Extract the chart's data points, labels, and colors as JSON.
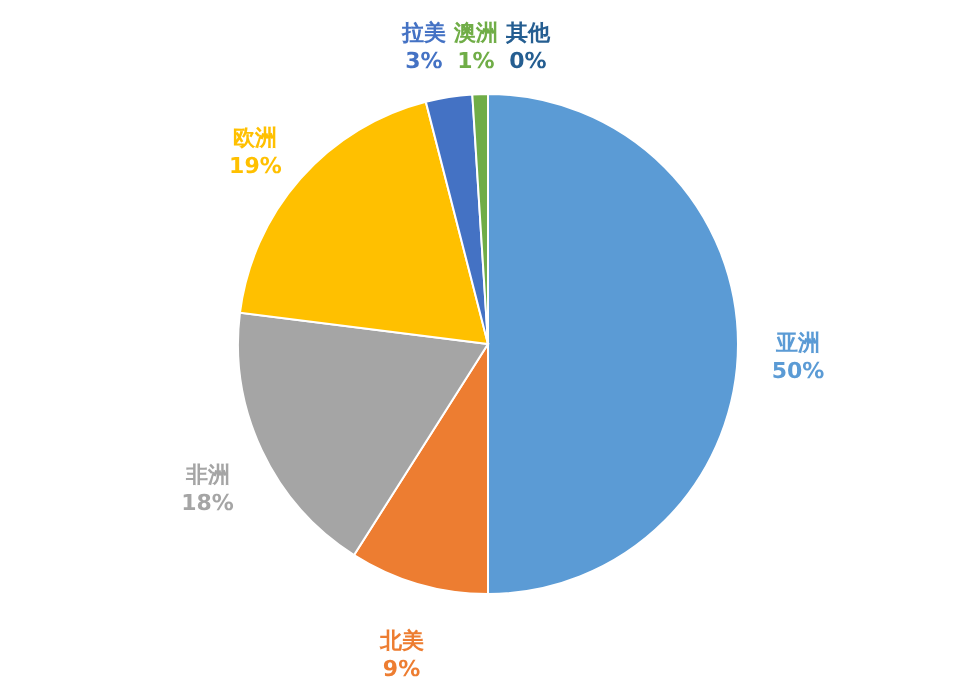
{
  "chart_data": {
    "type": "pie",
    "categories": [
      "亚洲",
      "北美",
      "非洲",
      "欧洲",
      "拉美",
      "澳洲",
      "其他"
    ],
    "values": [
      50,
      9,
      18,
      19,
      3,
      1,
      0
    ],
    "value_labels": [
      "50%",
      "9%",
      "18%",
      "19%",
      "3%",
      "1%",
      "0%"
    ],
    "colors": [
      "#5b9bd5",
      "#ed7d31",
      "#a5a5a5",
      "#ffc000",
      "#4472c4",
      "#70ad47",
      "#255e91"
    ]
  }
}
